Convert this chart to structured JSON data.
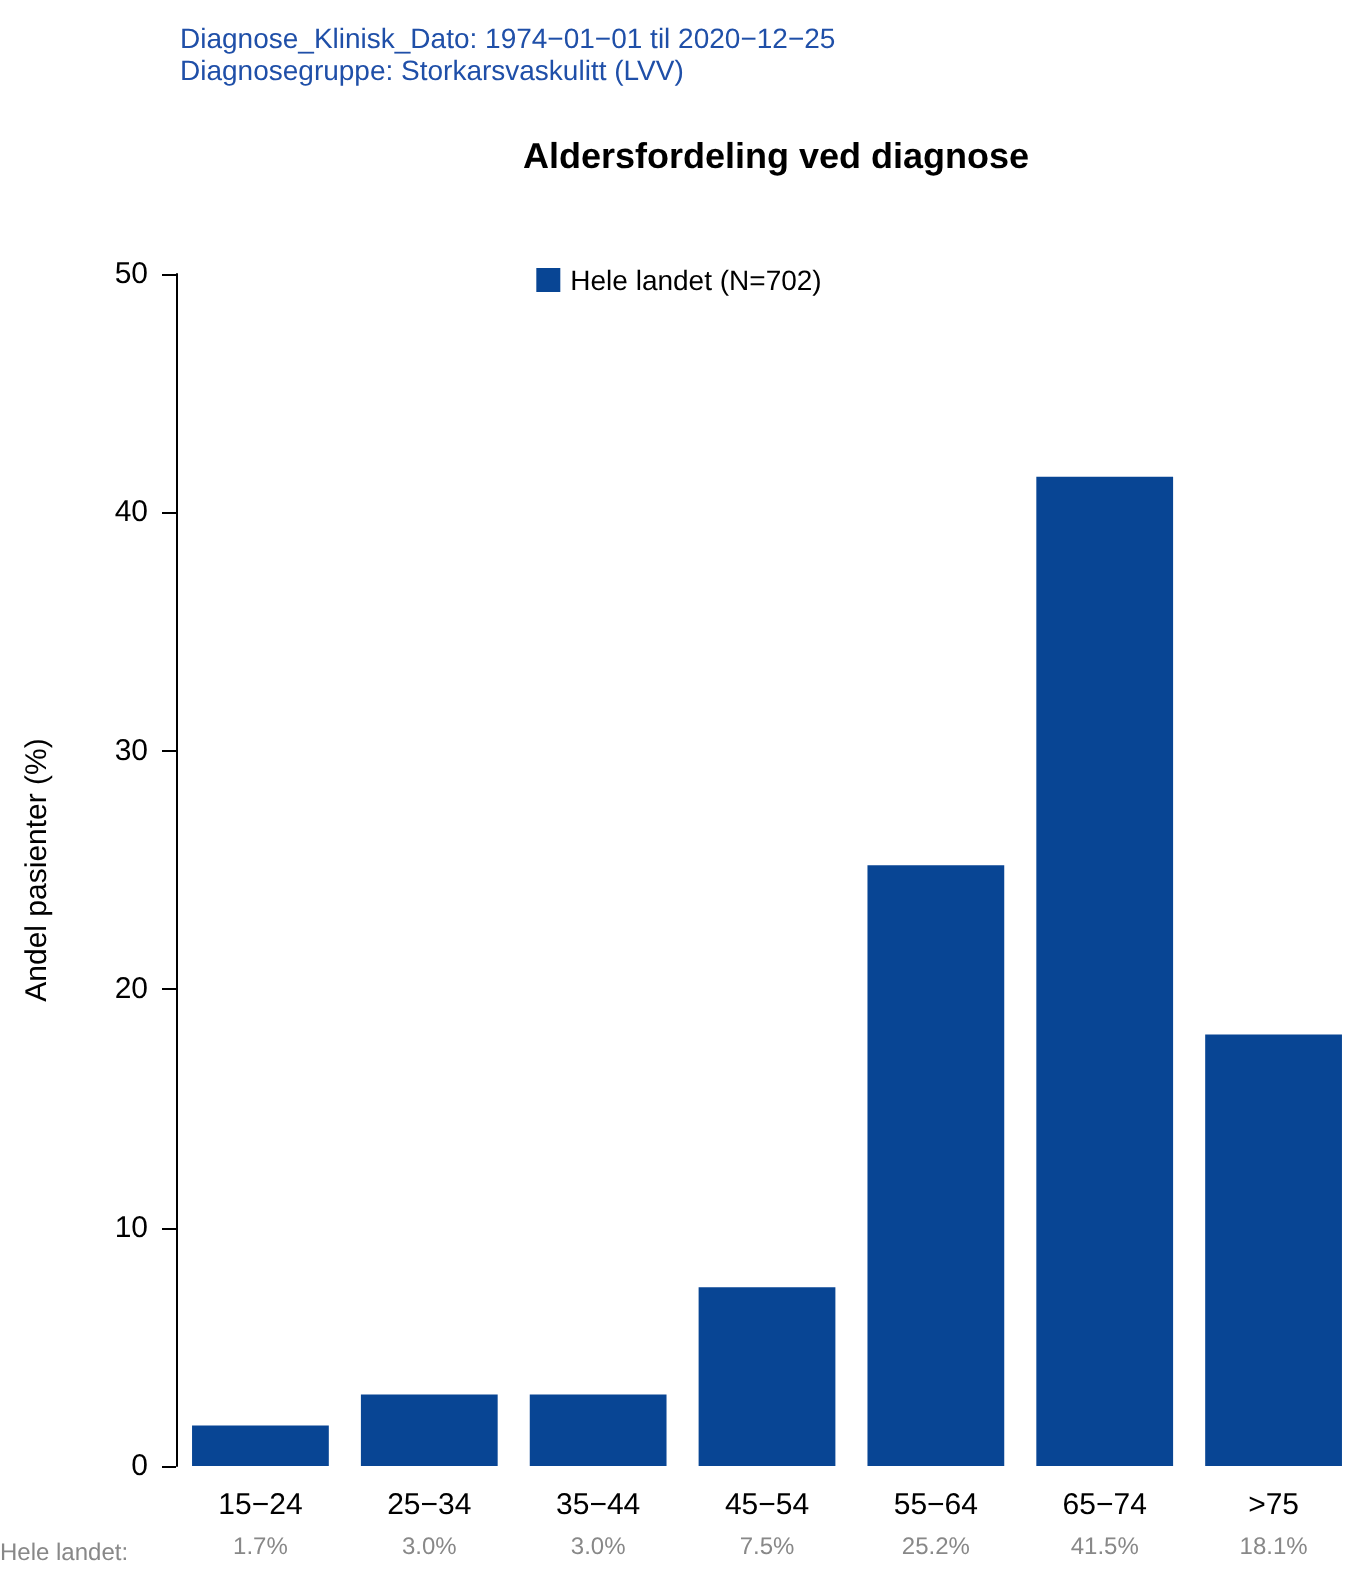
{
  "chart_data": {
    "type": "bar",
    "title": "Aldersfordeling ved diagnose",
    "ylabel": "Andel pasienter (%)",
    "annotations": [
      "Diagnose_Klinisk_Dato: 1974−01−01 til 2020−12−25",
      "Diagnosegruppe: Storkarsvaskulitt (LVV)",
      "Hele landet:"
    ],
    "categories": [
      "15−24",
      "25−34",
      "35−44",
      "45−54",
      "55−64",
      "65−74",
      ">75"
    ],
    "series": [
      {
        "name": "Hele landet (N=702)",
        "color": "#084594",
        "values": [
          1.7,
          3.0,
          3.0,
          7.5,
          25.2,
          41.5,
          18.1
        ],
        "value_labels": [
          "1.7%",
          "3.0%",
          "3.0%",
          "7.5%",
          "25.2%",
          "41.5%",
          "18.1%"
        ]
      }
    ],
    "ylim": [
      0,
      50
    ],
    "yticks": [
      0,
      10,
      20,
      30,
      40,
      50
    ],
    "grid": false,
    "legend": "top"
  }
}
